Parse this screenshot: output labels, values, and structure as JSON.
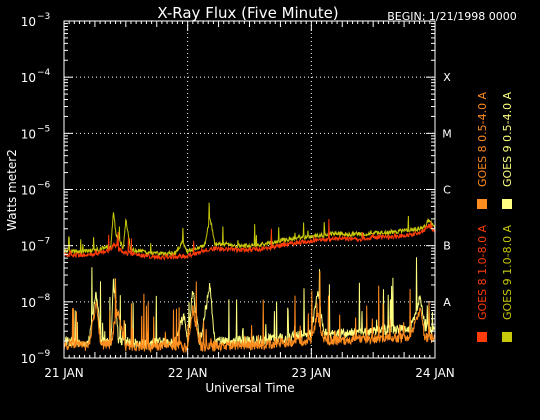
{
  "chart_data": {
    "type": "line",
    "title": "X-Ray Flux (Five Minute)",
    "begin_label": "BEGIN: 1/21/1998 0000",
    "xlabel": "Universal Time",
    "ylabel": "Watts meter2",
    "y_scale": "log",
    "ylim": [
      1e-09,
      0.001
    ],
    "y_ticks": [
      {
        "base": "10",
        "exp": "−3",
        "value": 0.001
      },
      {
        "base": "10",
        "exp": "−4",
        "value": 0.0001
      },
      {
        "base": "10",
        "exp": "−5",
        "value": 1e-05
      },
      {
        "base": "10",
        "exp": "−6",
        "value": 1e-06
      },
      {
        "base": "10",
        "exp": "−7",
        "value": 1e-07
      },
      {
        "base": "10",
        "exp": "−8",
        "value": 1e-08
      },
      {
        "base": "10",
        "exp": "−9",
        "value": 1e-09
      }
    ],
    "x_ticks": [
      {
        "label": "21 JAN",
        "day": 0
      },
      {
        "label": "22 JAN",
        "day": 1
      },
      {
        "label": "23 JAN",
        "day": 2
      },
      {
        "label": "24 JAN",
        "day": 3
      }
    ],
    "xlim_days": [
      0,
      3
    ],
    "grid": "dotted",
    "flare_classes": [
      {
        "label": "X",
        "value": 0.0001
      },
      {
        "label": "M",
        "value": 1e-05
      },
      {
        "label": "C",
        "value": 1e-06
      },
      {
        "label": "B",
        "value": 1e-07
      },
      {
        "label": "A",
        "value": 1e-08
      }
    ],
    "legend_position": "right",
    "series": [
      {
        "name": "GOES 8 1.0-8.0 A",
        "color": "#ff3c0a",
        "points": [
          [
            0.0,
            7e-08
          ],
          [
            0.1,
            6.8e-08
          ],
          [
            0.2,
            6.9e-08
          ],
          [
            0.3,
            7.4e-08
          ],
          [
            0.38,
            8.6e-08
          ],
          [
            0.4,
            1.05e-07
          ],
          [
            0.44,
            8.8e-08
          ],
          [
            0.5,
            7.4e-08
          ],
          [
            0.6,
            6.9e-08
          ],
          [
            0.7,
            6.4e-08
          ],
          [
            0.8,
            6.2e-08
          ],
          [
            0.9,
            6.3e-08
          ],
          [
            1.0,
            6.6e-08
          ],
          [
            1.08,
            7.4e-08
          ],
          [
            1.14,
            8.4e-08
          ],
          [
            1.22,
            9e-08
          ],
          [
            1.3,
            8.7e-08
          ],
          [
            1.4,
            8.3e-08
          ],
          [
            1.5,
            8.4e-08
          ],
          [
            1.6,
            8.7e-08
          ],
          [
            1.7,
            9.4e-08
          ],
          [
            1.8,
            1.05e-07
          ],
          [
            1.9,
            1.14e-07
          ],
          [
            2.0,
            1.2e-07
          ],
          [
            2.1,
            1.3e-07
          ],
          [
            2.2,
            1.35e-07
          ],
          [
            2.3,
            1.32e-07
          ],
          [
            2.4,
            1.32e-07
          ],
          [
            2.5,
            1.42e-07
          ],
          [
            2.6,
            1.4e-07
          ],
          [
            2.7,
            1.48e-07
          ],
          [
            2.8,
            1.55e-07
          ],
          [
            2.9,
            1.75e-07
          ],
          [
            2.95,
            2.25e-07
          ],
          [
            3.0,
            1.75e-07
          ]
        ]
      },
      {
        "name": "GOES 8 0.5-4.0 A",
        "color": "#ff8c1e",
        "points": [
          [
            0.0,
            1.7e-09
          ],
          [
            0.1,
            1.7e-09
          ],
          [
            0.2,
            1.6e-09
          ],
          [
            0.26,
            9e-09
          ],
          [
            0.3,
            1.7e-09
          ],
          [
            0.38,
            1.8e-09
          ],
          [
            0.43,
            7e-09
          ],
          [
            0.5,
            1.6e-09
          ],
          [
            0.6,
            1.6e-09
          ],
          [
            0.7,
            1.6e-09
          ],
          [
            0.8,
            1.7e-09
          ],
          [
            0.9,
            1.7e-09
          ],
          [
            1.0,
            1.5e-09
          ],
          [
            1.04,
            8e-09
          ],
          [
            1.1,
            1.6e-09
          ],
          [
            1.2,
            1.6e-09
          ],
          [
            1.3,
            1.7e-09
          ],
          [
            1.4,
            1.7e-09
          ],
          [
            1.5,
            1.7e-09
          ],
          [
            1.6,
            1.7e-09
          ],
          [
            1.7,
            1.8e-09
          ],
          [
            1.8,
            1.9e-09
          ],
          [
            1.9,
            2e-09
          ],
          [
            2.0,
            2.1e-09
          ],
          [
            2.05,
            6e-09
          ],
          [
            2.1,
            2.1e-09
          ],
          [
            2.2,
            2e-09
          ],
          [
            2.3,
            2.1e-09
          ],
          [
            2.4,
            2.2e-09
          ],
          [
            2.5,
            2.2e-09
          ],
          [
            2.6,
            2.3e-09
          ],
          [
            2.7,
            2.3e-09
          ],
          [
            2.8,
            2.4e-09
          ],
          [
            2.88,
            7e-09
          ],
          [
            2.92,
            2.3e-09
          ],
          [
            3.0,
            2.2e-09
          ]
        ]
      },
      {
        "name": "GOES 9 1.0-8.0 A",
        "color": "#c8c80a",
        "points": [
          [
            0.0,
            8e-08
          ],
          [
            0.1,
            7.8e-08
          ],
          [
            0.2,
            7.9e-08
          ],
          [
            0.3,
            8.8e-08
          ],
          [
            0.38,
            1e-07
          ],
          [
            0.4,
            4.2e-07
          ],
          [
            0.42,
            1.6e-07
          ],
          [
            0.48,
            9e-08
          ],
          [
            0.5,
            2.9e-07
          ],
          [
            0.54,
            8.5e-08
          ],
          [
            0.6,
            8e-08
          ],
          [
            0.7,
            7.5e-08
          ],
          [
            0.8,
            7.2e-08
          ],
          [
            0.9,
            7.3e-08
          ],
          [
            0.96,
            1.2e-07
          ],
          [
            1.0,
            7.8e-08
          ],
          [
            1.08,
            9e-08
          ],
          [
            1.14,
            1.05e-07
          ],
          [
            1.18,
            3.2e-07
          ],
          [
            1.22,
            1.1e-07
          ],
          [
            1.3,
            1.05e-07
          ],
          [
            1.4,
            1e-07
          ],
          [
            1.5,
            1e-07
          ],
          [
            1.6,
            1.05e-07
          ],
          [
            1.7,
            1.15e-07
          ],
          [
            1.8,
            1.3e-07
          ],
          [
            1.9,
            1.4e-07
          ],
          [
            2.0,
            1.45e-07
          ],
          [
            2.1,
            1.55e-07
          ],
          [
            2.2,
            1.65e-07
          ],
          [
            2.3,
            1.6e-07
          ],
          [
            2.4,
            1.6e-07
          ],
          [
            2.5,
            1.7e-07
          ],
          [
            2.6,
            1.7e-07
          ],
          [
            2.7,
            1.8e-07
          ],
          [
            2.8,
            1.9e-07
          ],
          [
            2.9,
            2.1e-07
          ],
          [
            2.95,
            2.8e-07
          ],
          [
            3.0,
            2.1e-07
          ]
        ]
      },
      {
        "name": "GOES 9 0.5-4.0 A",
        "color": "#ffff80",
        "points": [
          [
            0.0,
            2e-09
          ],
          [
            0.1,
            1.9e-09
          ],
          [
            0.2,
            1.9e-09
          ],
          [
            0.26,
            1.5e-08
          ],
          [
            0.3,
            2e-09
          ],
          [
            0.38,
            1.9e-09
          ],
          [
            0.4,
            2.5e-08
          ],
          [
            0.44,
            2.2e-09
          ],
          [
            0.5,
            2e-09
          ],
          [
            0.6,
            1.8e-09
          ],
          [
            0.7,
            1.8e-09
          ],
          [
            0.8,
            1.9e-09
          ],
          [
            0.9,
            1.9e-09
          ],
          [
            0.97,
            6e-09
          ],
          [
            1.0,
            1.8e-09
          ],
          [
            1.04,
            1.6e-08
          ],
          [
            1.1,
            1.9e-09
          ],
          [
            1.18,
            2e-08
          ],
          [
            1.22,
            2e-09
          ],
          [
            1.3,
            2e-09
          ],
          [
            1.4,
            2e-09
          ],
          [
            1.5,
            2e-09
          ],
          [
            1.6,
            2.1e-09
          ],
          [
            1.7,
            2.2e-09
          ],
          [
            1.8,
            2.3e-09
          ],
          [
            1.9,
            2.5e-09
          ],
          [
            2.0,
            2.7e-09
          ],
          [
            2.05,
            1.6e-08
          ],
          [
            2.1,
            2.7e-09
          ],
          [
            2.2,
            2.6e-09
          ],
          [
            2.3,
            2.8e-09
          ],
          [
            2.4,
            2.9e-09
          ],
          [
            2.5,
            3e-09
          ],
          [
            2.6,
            3.1e-09
          ],
          [
            2.7,
            3.2e-09
          ],
          [
            2.8,
            3.4e-09
          ],
          [
            2.88,
            1.2e-08
          ],
          [
            2.92,
            3.3e-09
          ],
          [
            3.0,
            3.2e-09
          ]
        ]
      }
    ]
  }
}
